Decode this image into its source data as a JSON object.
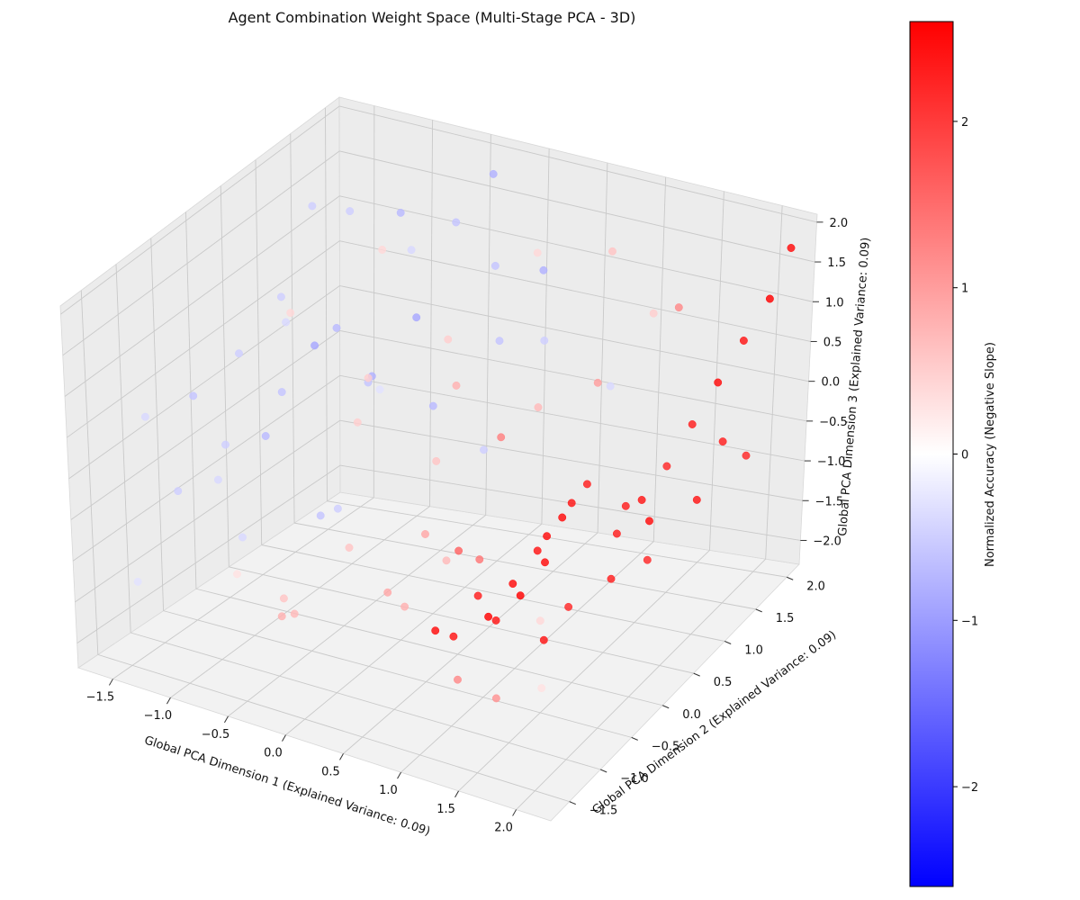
{
  "chart_data": {
    "type": "scatter",
    "title": "Agent Combination Weight Space (Multi-Stage PCA - 3D)",
    "xlabel": "Global PCA Dimension 1 (Explained Variance: 0.09)",
    "ylabel": "Global PCA Dimension 2 (Explained Variance: 0.09)",
    "zlabel": "Global PCA Dimension 3 (Explained Variance: 0.09)",
    "xlim": [
      -1.8,
      2.3
    ],
    "ylim": [
      -1.8,
      2.2
    ],
    "zlim": [
      -2.3,
      2.1
    ],
    "x_ticks": [
      "−1.5",
      "−1.0",
      "−0.5",
      "0.0",
      "0.5",
      "1.0",
      "1.5",
      "2.0"
    ],
    "y_ticks": [
      "−1.5",
      "−1.0",
      "−0.5",
      "0.0",
      "0.5",
      "1.0",
      "1.5",
      "2.0"
    ],
    "z_ticks": [
      "−2.0",
      "−1.5",
      "−1.0",
      "−0.5",
      "0.0",
      "0.5",
      "1.0",
      "1.5",
      "2.0"
    ],
    "grid": true,
    "colorbar": {
      "label": "Normalized Accuracy (Negative Slope)",
      "range": [
        -2.6,
        2.6
      ],
      "ticks": [
        "−2",
        "−1",
        "0",
        "1",
        "2"
      ],
      "colors": [
        "#0000ff",
        "#ffffff",
        "#ff0000"
      ]
    },
    "points": [
      {
        "x": 1.2,
        "y": -1.6,
        "z": -0.6,
        "c": 2.5
      },
      {
        "x": 1.3,
        "y": -1.5,
        "z": -0.7,
        "c": 2.4
      },
      {
        "x": 1.4,
        "y": -1.3,
        "z": -0.3,
        "c": 2.3
      },
      {
        "x": 1.8,
        "y": -1.0,
        "z": -0.9,
        "c": 2.4
      },
      {
        "x": 1.9,
        "y": -0.8,
        "z": -0.6,
        "c": 2.2
      },
      {
        "x": 2.1,
        "y": -0.5,
        "z": -0.4,
        "c": 2.3
      },
      {
        "x": 1.6,
        "y": -0.6,
        "z": 0.0,
        "c": 2.5
      },
      {
        "x": 1.7,
        "y": -0.4,
        "z": 0.3,
        "c": 2.4
      },
      {
        "x": 1.1,
        "y": -0.6,
        "z": -1.2,
        "c": 2.6
      },
      {
        "x": 1.2,
        "y": -0.4,
        "z": -0.9,
        "c": 2.5
      },
      {
        "x": 1.3,
        "y": -0.2,
        "z": -0.6,
        "c": 2.4
      },
      {
        "x": 1.4,
        "y": 0.0,
        "z": -0.3,
        "c": 2.5
      },
      {
        "x": 1.5,
        "y": 0.2,
        "z": 0.0,
        "c": 2.3
      },
      {
        "x": 1.0,
        "y": -0.3,
        "z": -1.5,
        "c": 2.4
      },
      {
        "x": 1.1,
        "y": -0.1,
        "z": -1.3,
        "c": 2.6
      },
      {
        "x": 1.2,
        "y": 0.1,
        "z": -1.0,
        "c": 2.5
      },
      {
        "x": 1.6,
        "y": 0.5,
        "z": -0.8,
        "c": 2.3
      },
      {
        "x": 1.7,
        "y": 0.7,
        "z": -0.5,
        "c": 2.4
      },
      {
        "x": 1.8,
        "y": 0.9,
        "z": -0.2,
        "c": 2.2
      },
      {
        "x": 1.9,
        "y": 1.1,
        "z": 0.2,
        "c": 2.3
      },
      {
        "x": 2.0,
        "y": 1.3,
        "z": 0.6,
        "c": 2.5
      },
      {
        "x": 2.1,
        "y": 1.5,
        "z": 1.0,
        "c": 2.4
      },
      {
        "x": 2.2,
        "y": 1.7,
        "z": 1.4,
        "c": 2.6
      },
      {
        "x": 2.2,
        "y": 2.0,
        "z": 1.8,
        "c": 2.5
      },
      {
        "x": 1.9,
        "y": 1.6,
        "z": -0.4,
        "c": 2.3
      },
      {
        "x": 2.0,
        "y": 1.8,
        "z": -0.7,
        "c": 2.2
      },
      {
        "x": 1.8,
        "y": 1.4,
        "z": -1.0,
        "c": 2.4
      },
      {
        "x": 1.5,
        "y": 1.2,
        "z": -1.2,
        "c": 2.5
      },
      {
        "x": 1.4,
        "y": 1.0,
        "z": -0.9,
        "c": 2.3
      },
      {
        "x": 1.6,
        "y": 1.0,
        "z": -1.5,
        "c": 2.2
      },
      {
        "x": 0.9,
        "y": -0.7,
        "z": -0.4,
        "c": 1.6
      },
      {
        "x": 1.0,
        "y": -0.9,
        "z": -1.8,
        "c": 1.2
      },
      {
        "x": 0.8,
        "y": -0.2,
        "z": -0.9,
        "c": 1.4
      },
      {
        "x": 1.5,
        "y": -1.2,
        "z": -1.6,
        "c": 1.1
      },
      {
        "x": 0.7,
        "y": 0.3,
        "z": 0.2,
        "c": 1.3
      },
      {
        "x": 1.3,
        "y": 0.7,
        "z": 0.8,
        "c": 1.0
      },
      {
        "x": 1.7,
        "y": 1.2,
        "z": 1.5,
        "c": 1.2
      },
      {
        "x": 0.6,
        "y": -1.0,
        "z": -1.0,
        "c": 0.8
      },
      {
        "x": 0.5,
        "y": -0.5,
        "z": -0.5,
        "c": 0.9
      },
      {
        "x": 0.4,
        "y": 0.0,
        "z": -1.2,
        "c": 0.7
      },
      {
        "x": 0.3,
        "y": -1.3,
        "z": -0.2,
        "c": 0.6
      },
      {
        "x": 0.2,
        "y": 0.5,
        "z": 0.5,
        "c": 0.8
      },
      {
        "x": 0.1,
        "y": -0.8,
        "z": 0.9,
        "c": 0.5
      },
      {
        "x": 0.0,
        "y": -0.2,
        "z": -1.6,
        "c": 0.9
      },
      {
        "x": -0.2,
        "y": 0.9,
        "z": -0.8,
        "c": 0.6
      },
      {
        "x": -0.3,
        "y": -1.1,
        "z": -1.4,
        "c": 0.7
      },
      {
        "x": -0.5,
        "y": 0.4,
        "z": 0.4,
        "c": 0.5
      },
      {
        "x": -0.7,
        "y": -0.6,
        "z": -1.9,
        "c": 0.8
      },
      {
        "x": -0.9,
        "y": 1.3,
        "z": 1.2,
        "c": 0.4
      },
      {
        "x": 0.9,
        "y": 1.6,
        "z": 1.6,
        "c": 0.6
      },
      {
        "x": 1.1,
        "y": 1.9,
        "z": 0.7,
        "c": 0.5
      },
      {
        "x": 0.4,
        "y": 1.4,
        "z": -0.3,
        "c": 0.7
      },
      {
        "x": 0.6,
        "y": 1.0,
        "z": 1.9,
        "c": 0.4
      },
      {
        "x": 2.0,
        "y": -1.4,
        "z": -1.1,
        "c": 0.3
      },
      {
        "x": -1.2,
        "y": -0.4,
        "z": -1.7,
        "c": 0.3
      },
      {
        "x": -1.4,
        "y": 0.8,
        "z": 0.6,
        "c": 0.4
      },
      {
        "x": 0.3,
        "y": 0.2,
        "z": 1.3,
        "c": 0.5
      },
      {
        "x": -0.1,
        "y": -1.6,
        "z": -0.8,
        "c": 0.6
      },
      {
        "x": 1.0,
        "y": 0.4,
        "z": -2.0,
        "c": 0.4
      },
      {
        "x": -1.0,
        "y": 1.0,
        "z": 1.8,
        "c": -0.5
      },
      {
        "x": -0.8,
        "y": 1.4,
        "z": 1.6,
        "c": -0.7
      },
      {
        "x": -0.5,
        "y": 1.7,
        "z": 1.4,
        "c": -0.6
      },
      {
        "x": -0.3,
        "y": 1.9,
        "z": 1.9,
        "c": -0.8
      },
      {
        "x": -1.3,
        "y": 0.5,
        "z": 1.0,
        "c": -0.5
      },
      {
        "x": -1.5,
        "y": 0.9,
        "z": 0.4,
        "c": -0.4
      },
      {
        "x": -1.6,
        "y": -0.3,
        "z": 0.2,
        "c": -0.6
      },
      {
        "x": -1.4,
        "y": -0.9,
        "z": -0.5,
        "c": -0.5
      },
      {
        "x": -1.1,
        "y": -0.1,
        "z": -0.2,
        "c": -0.7
      },
      {
        "x": -0.9,
        "y": 0.3,
        "z": 0.7,
        "c": -0.9
      },
      {
        "x": -0.7,
        "y": 0.8,
        "z": 0.1,
        "c": -0.8
      },
      {
        "x": -0.6,
        "y": -0.7,
        "z": 0.9,
        "c": -0.6
      },
      {
        "x": -0.4,
        "y": 1.2,
        "z": -0.4,
        "c": -0.7
      },
      {
        "x": -0.2,
        "y": 0.6,
        "z": 1.1,
        "c": -0.9
      },
      {
        "x": 0.0,
        "y": 1.5,
        "z": 0.3,
        "c": -0.6
      },
      {
        "x": 0.2,
        "y": 1.8,
        "z": 1.0,
        "c": -0.8
      },
      {
        "x": 0.1,
        "y": 1.1,
        "z": -0.7,
        "c": -0.5
      },
      {
        "x": -1.2,
        "y": 1.6,
        "z": -0.6,
        "c": -0.6
      },
      {
        "x": -1.0,
        "y": 1.9,
        "z": 0.8,
        "c": -0.4
      },
      {
        "x": -1.5,
        "y": 1.3,
        "z": 1.5,
        "c": -0.5
      },
      {
        "x": -1.7,
        "y": 0.2,
        "z": -1.1,
        "c": -0.4
      },
      {
        "x": -0.8,
        "y": -1.2,
        "z": 0.5,
        "c": -0.5
      },
      {
        "x": -0.5,
        "y": -1.5,
        "z": -0.3,
        "c": -0.4
      },
      {
        "x": -0.3,
        "y": -0.4,
        "z": 1.6,
        "c": -0.7
      },
      {
        "x": 0.3,
        "y": 0.9,
        "z": 1.7,
        "c": -0.6
      },
      {
        "x": 0.5,
        "y": 1.3,
        "z": 0.6,
        "c": -0.5
      },
      {
        "x": -1.6,
        "y": -1.2,
        "z": -1.5,
        "c": -0.3
      },
      {
        "x": -1.3,
        "y": -1.5,
        "z": 0.8,
        "c": -0.4
      },
      {
        "x": -0.6,
        "y": 0.1,
        "z": -1.0,
        "c": -0.5
      },
      {
        "x": -1.1,
        "y": 0.7,
        "z": -1.6,
        "c": -0.6
      },
      {
        "x": 0.8,
        "y": 1.8,
        "z": -0.2,
        "c": -0.4
      },
      {
        "x": -0.4,
        "y": 0.4,
        "z": 0.3,
        "c": -0.3
      },
      {
        "x": -0.9,
        "y": -0.8,
        "z": 1.3,
        "c": -0.5
      }
    ]
  }
}
